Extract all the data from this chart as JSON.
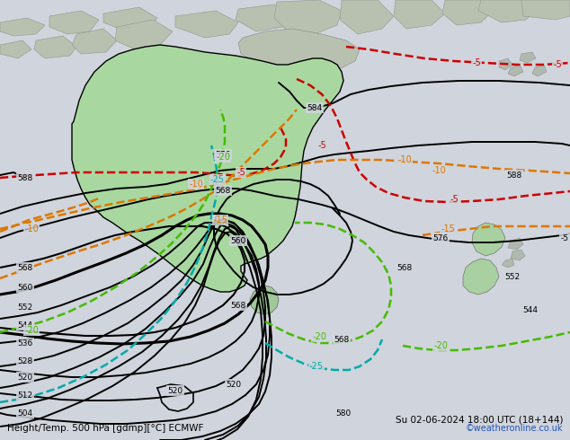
{
  "title_left": "Height/Temp. 500 hPa [gdmp][°C] ECMWF",
  "title_right": "Su 02-06-2024 18:00 UTC (18+144)",
  "watermark": "©weatheronline.co.uk",
  "bg_color": "#d0d4dc",
  "land_color_grey": "#b8c0b8",
  "land_color_green": "#a8d8a8",
  "australia_green": "#98d098",
  "nz_green": "#a8d8a8",
  "figsize": [
    6.34,
    4.9
  ],
  "dpi": 100
}
